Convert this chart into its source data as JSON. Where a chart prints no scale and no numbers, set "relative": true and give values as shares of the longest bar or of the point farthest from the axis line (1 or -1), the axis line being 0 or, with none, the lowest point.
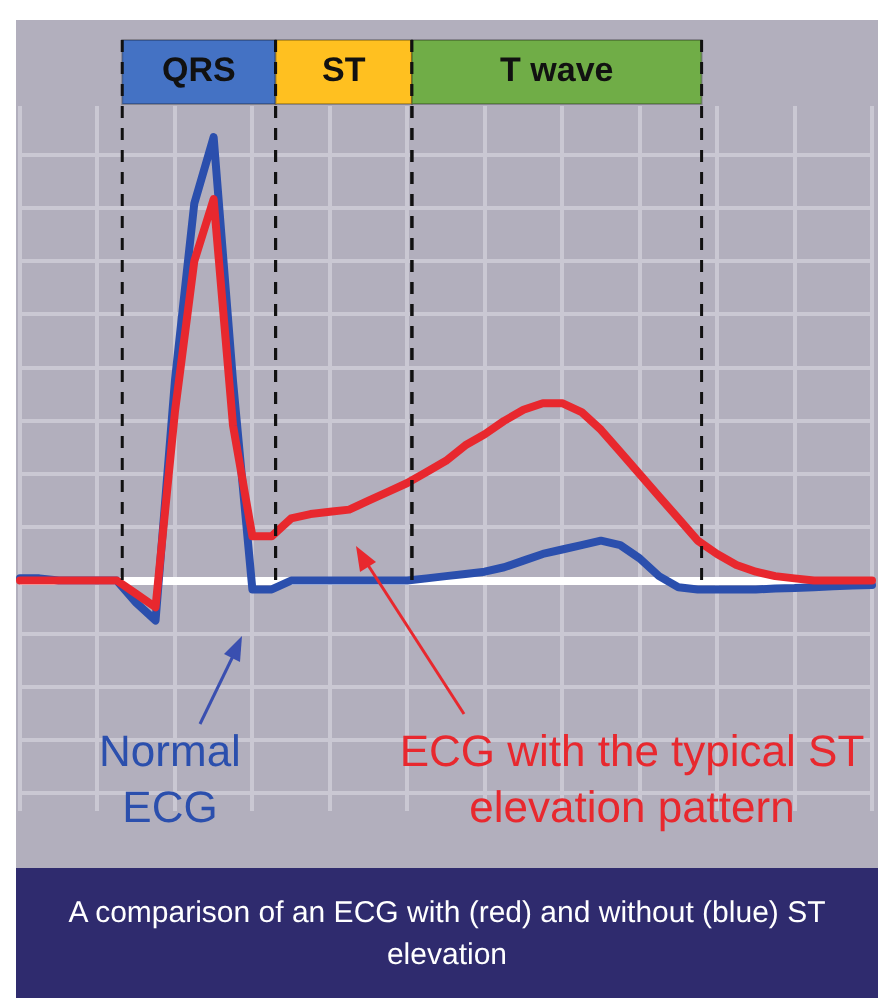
{
  "chart_data": {
    "type": "line",
    "relative": true,
    "categories": [
      null,
      null,
      null,
      null,
      null,
      null,
      null,
      null,
      null,
      null,
      null,
      null,
      null,
      null,
      null,
      null,
      null,
      null,
      null,
      null,
      null,
      null,
      null,
      null,
      null,
      null,
      null,
      null,
      null,
      null,
      null,
      null,
      null,
      null,
      null,
      null,
      null,
      null,
      null,
      null,
      null,
      null,
      null,
      null,
      null
    ],
    "series": [
      {
        "name": "Normal ECG",
        "color": "#2b4fad",
        "values": [
          0.005,
          0.005,
          0,
          0,
          0,
          0,
          -0.05,
          -0.09,
          0.45,
          0.85,
          1,
          0.45,
          -0.02,
          -0.02,
          0,
          0,
          0,
          0,
          0,
          0,
          0,
          0.005,
          0.01,
          0.015,
          0.02,
          0.03,
          0.045,
          0.06,
          0.07,
          0.08,
          0.09,
          0.08,
          0.05,
          0.01,
          -0.015,
          -0.02,
          -0.02,
          -0.02,
          -0.02,
          -0.018,
          -0.017,
          -0.015,
          -0.013,
          -0.011,
          -0.01
        ]
      },
      {
        "name": "ECG with the typical ST elevation pattern",
        "color": "#e8282e",
        "values": [
          0,
          0,
          0,
          0,
          0,
          0,
          -0.03,
          -0.06,
          0.38,
          0.72,
          0.86,
          0.35,
          0.1,
          0.1,
          0.14,
          0.15,
          0.155,
          0.16,
          0.18,
          0.2,
          0.22,
          0.245,
          0.27,
          0.305,
          0.33,
          0.36,
          0.385,
          0.4,
          0.4,
          0.38,
          0.34,
          0.29,
          0.24,
          0.19,
          0.14,
          0.09,
          0.06,
          0.035,
          0.02,
          0.01,
          0.005,
          0,
          0,
          0,
          0
        ]
      }
    ],
    "annotations": [
      "QRS",
      "ST",
      "T wave",
      "A comparison of an ECG with (red) and without (blue) ST elevation"
    ],
    "grid": true,
    "legend": "bottom",
    "marker": "none",
    "line_style": "solid"
  }
}
